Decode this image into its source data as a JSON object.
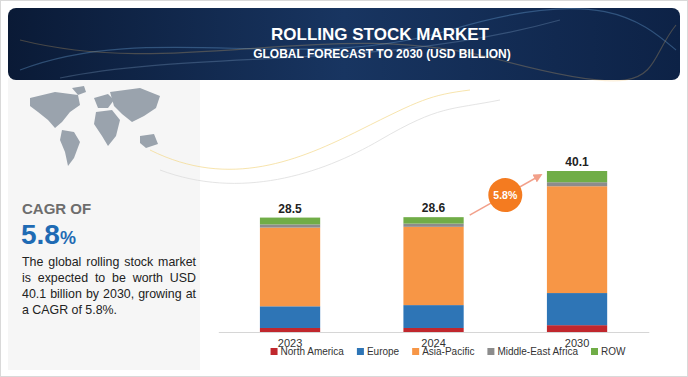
{
  "chart_data": {
    "type": "bar",
    "stacked": true,
    "data_labels": true,
    "tick_labels": "x",
    "legend": "bottom",
    "title": "ROLLING STOCK MARKET",
    "subtitle": "GLOBAL FORECAST TO 2030 (USD BILLION)",
    "categories": [
      "2023",
      "2024",
      "2030"
    ],
    "series": [
      {
        "name": "North America",
        "color": "#c0272d",
        "values": [
          1.0,
          1.0,
          1.7
        ]
      },
      {
        "name": "Europe",
        "color": "#2e75b6",
        "values": [
          5.4,
          5.7,
          8.0
        ]
      },
      {
        "name": "Asia-Pacific",
        "color": "#f79646",
        "values": [
          19.6,
          19.5,
          26.6
        ]
      },
      {
        "name": "Middle-East Africa",
        "color": "#8c8c8c",
        "values": [
          0.8,
          0.8,
          1.0
        ]
      },
      {
        "name": "ROW",
        "color": "#70ad47",
        "values": [
          1.7,
          1.6,
          2.8
        ]
      }
    ],
    "totals": [
      28.5,
      28.6,
      40.1
    ],
    "annotations": [
      "5.8%"
    ]
  },
  "sidebar": {
    "label": "CAGR OF",
    "value": "5.8%",
    "text": "The global rolling stock market is expected to be worth USD 40.1 billion by 2030, growing at a CAGR of 5.8%."
  }
}
